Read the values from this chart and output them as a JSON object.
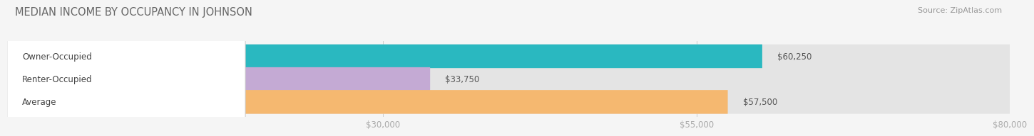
{
  "title": "MEDIAN INCOME BY OCCUPANCY IN JOHNSON",
  "source": "Source: ZipAtlas.com",
  "categories": [
    "Owner-Occupied",
    "Renter-Occupied",
    "Average"
  ],
  "values": [
    60250,
    33750,
    57500
  ],
  "labels": [
    "$60,250",
    "$33,750",
    "$57,500"
  ],
  "bar_colors": [
    "#2ab8c0",
    "#c4aad4",
    "#f5b870"
  ],
  "bar_bg_color": "#e4e4e4",
  "xlim": [
    0,
    80000
  ],
  "xticks": [
    30000,
    55000,
    80000
  ],
  "xtick_labels": [
    "$30,000",
    "$55,000",
    "$80,000"
  ],
  "bar_height": 0.52,
  "bg_color": "#f5f5f5",
  "title_fontsize": 10.5,
  "label_fontsize": 8.5,
  "tick_fontsize": 8.5,
  "source_fontsize": 8
}
